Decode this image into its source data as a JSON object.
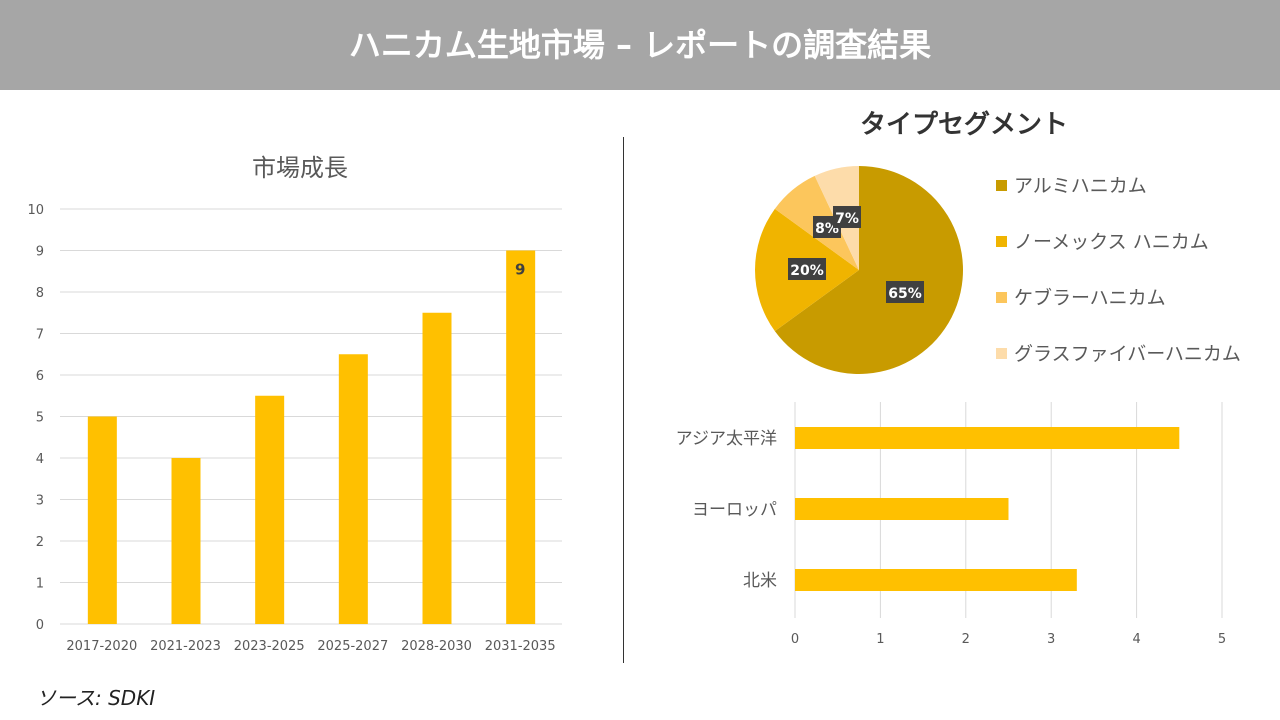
{
  "header": {
    "title": "ハニカム生地市場 – レポートの調査結果"
  },
  "source": "ソース: SDKI",
  "colors": {
    "bar": "#ffc000",
    "pie": [
      "#c89b00",
      "#f0b400",
      "#fcc65c",
      "#fddcaa"
    ]
  },
  "chart_data": [
    {
      "type": "bar",
      "title": "市場成長",
      "categories": [
        "2017-2020",
        "2021-2023",
        "2023-2025",
        "2025-2027",
        "2028-2030",
        "2031-2035"
      ],
      "values": [
        5,
        4,
        5.5,
        6.5,
        7.5,
        9
      ],
      "ylim": [
        0,
        10
      ],
      "yticks": [
        "0",
        "1",
        "2",
        "3",
        "4",
        "5",
        "6",
        "7",
        "8",
        "9",
        "10"
      ],
      "data_labels": {
        "5": "9"
      },
      "grid": true
    },
    {
      "type": "pie",
      "title": "タイプセグメント",
      "labels": [
        "アルミハニカム",
        "ノーメックス ハニカム",
        "ケブラーハニカム",
        "グラスファイバーハニカム"
      ],
      "values": [
        65,
        20,
        8,
        7
      ],
      "value_labels": [
        "65%",
        "20%",
        "8%",
        "7%"
      ],
      "legend": "right"
    },
    {
      "type": "bar",
      "orientation": "horizontal",
      "categories": [
        "アジア太平洋",
        "ヨーロッパ",
        "北米"
      ],
      "values": [
        4.5,
        2.5,
        3.3
      ],
      "xlim": [
        0,
        5
      ],
      "xticks": [
        "0",
        "1",
        "2",
        "3",
        "4",
        "5"
      ],
      "grid": true
    }
  ]
}
